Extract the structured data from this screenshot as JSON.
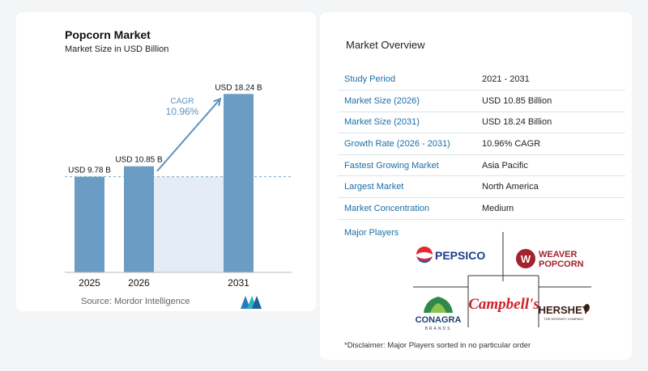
{
  "chart": {
    "title": "Popcorn Market",
    "subtitle": "Market Size in USD Billion",
    "cagr_label": "CAGR",
    "cagr_value": "10.96%",
    "source": "Source:  Mordor Intelligence"
  },
  "chart_data": {
    "type": "bar",
    "title": "Popcorn Market",
    "subtitle": "Market Size in USD Billion",
    "categories": [
      "2025",
      "2026",
      "2031"
    ],
    "values": [
      9.78,
      10.85,
      18.24
    ],
    "data_labels": [
      "USD 9.78 B",
      "USD 10.85 B",
      "USD 18.24 B"
    ],
    "ylim": [
      0,
      20
    ],
    "annotation": "CAGR 10.96%",
    "colors": {
      "bar": "#6b9cc3",
      "shade": "#e4edf5",
      "arrow": "#5d93c0"
    }
  },
  "overview": {
    "title": "Market Overview",
    "rows": [
      {
        "label": "Study Period",
        "value": "2021 - 2031"
      },
      {
        "label": "Market Size (2026)",
        "value": "USD 10.85 Billion"
      },
      {
        "label": "Market Size (2031)",
        "value": "USD 18.24 Billion"
      },
      {
        "label": "Growth Rate (2026 - 2031)",
        "value": "10.96% CAGR"
      },
      {
        "label": "Fastest Growing Market",
        "value": "Asia Pacific"
      },
      {
        "label": "Largest Market",
        "value": "North America"
      },
      {
        "label": "Market Concentration",
        "value": "Medium"
      }
    ]
  },
  "players": {
    "title": "Major Players",
    "logos": {
      "pepsico": "PEPSICO",
      "weaver_1": "WEAVER",
      "weaver_2": "POPCORN",
      "conagra_1": "CONAGRA",
      "conagra_2": "BRANDS",
      "campbells": "Campbell's",
      "hershey_1": "HERSHEY",
      "hershey_2": "THE HERSHEY COMPANY"
    }
  },
  "disclaimer": "*Disclaimer: Major Players sorted in no particular order",
  "colors": {
    "accent": "#1b6fa8",
    "divider": "#dde4ea"
  }
}
